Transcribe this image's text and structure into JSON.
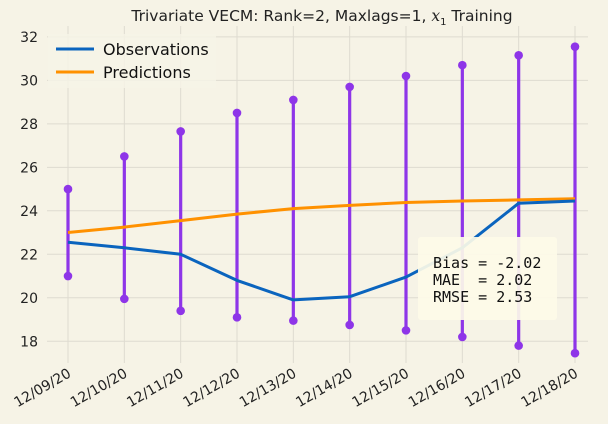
{
  "chart_data": {
    "type": "line",
    "title": "Trivariate VECM: Rank=2, Maxlags=1,",
    "title_math_symbol": "x",
    "title_math_subscript": "1",
    "title_suffix": "Training",
    "x": [
      "12/09/20",
      "12/10/20",
      "12/11/20",
      "12/12/20",
      "12/13/20",
      "12/14/20",
      "12/15/20",
      "12/16/20",
      "12/17/20",
      "12/18/20"
    ],
    "ylim": [
      17,
      32.5
    ],
    "yticks": [
      18,
      20,
      22,
      24,
      26,
      28,
      30,
      32
    ],
    "series": [
      {
        "name": "Observations",
        "color": "#0a64be",
        "values": [
          22.55,
          22.3,
          22.0,
          20.8,
          19.9,
          20.05,
          20.95,
          22.3,
          24.35,
          24.45
        ]
      },
      {
        "name": "Predictions",
        "color": "#ff9100",
        "values": [
          23.0,
          23.25,
          23.55,
          23.85,
          24.1,
          24.25,
          24.38,
          24.45,
          24.5,
          24.55
        ]
      }
    ],
    "intervals": {
      "color": "#8e35e8",
      "lower": [
        21.0,
        19.95,
        19.4,
        19.1,
        18.95,
        18.75,
        18.5,
        18.2,
        17.8,
        17.45
      ],
      "upper": [
        25.0,
        26.5,
        27.65,
        28.5,
        29.1,
        29.7,
        30.2,
        30.7,
        31.15,
        31.55
      ]
    },
    "stats": [
      "Bias = -2.02",
      "MAE  = 2.02",
      "RMSE = 2.53"
    ],
    "legend_position": "top-left",
    "grid": true
  }
}
